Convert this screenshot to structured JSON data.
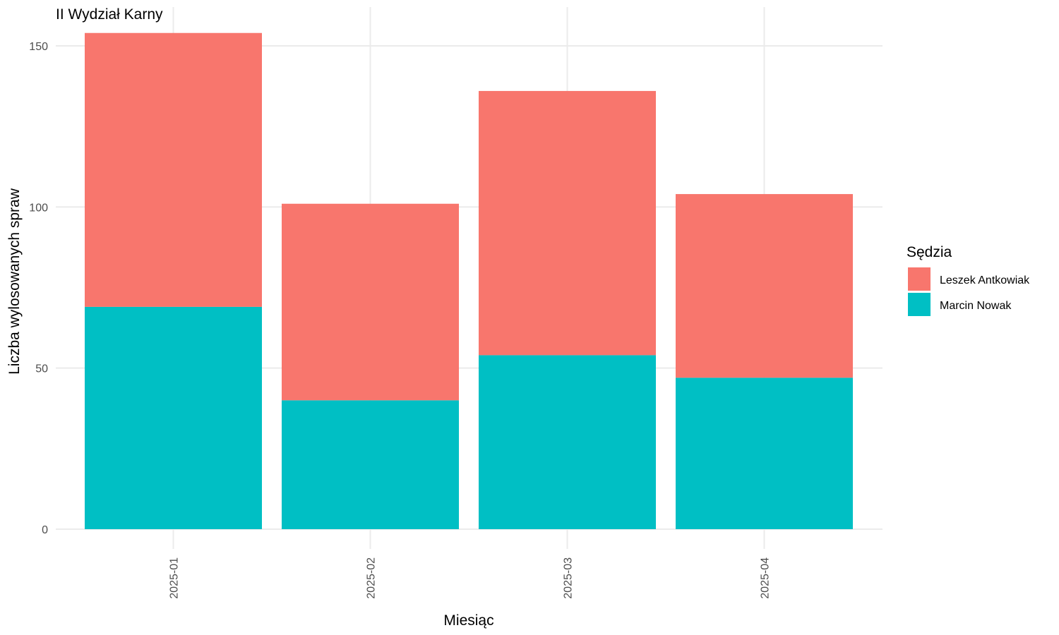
{
  "chart_data": {
    "type": "bar",
    "stacked": true,
    "title": "II Wydział Karny",
    "xlabel": "Miesiąc",
    "ylabel": "Liczba wylosowanych spraw",
    "categories": [
      "2025-01",
      "2025-02",
      "2025-03",
      "2025-04"
    ],
    "series": [
      {
        "name": "Marcin Nowak",
        "values": [
          69,
          40,
          54,
          47
        ],
        "color": "#00BFC4"
      },
      {
        "name": "Leszek Antkowiak",
        "values": [
          85,
          61,
          82,
          57
        ],
        "color": "#F8766D"
      }
    ],
    "ylim": [
      0,
      160
    ],
    "yticks": [
      0,
      50,
      100,
      150
    ],
    "ytick_labels": [
      "0",
      "50",
      "100",
      "150"
    ],
    "grid": true,
    "legend": {
      "title": "Sędzia",
      "position": "right",
      "entries": [
        {
          "label": "Leszek Antkowiak",
          "color": "#F8766D"
        },
        {
          "label": "Marcin Nowak",
          "color": "#00BFC4"
        }
      ]
    }
  }
}
